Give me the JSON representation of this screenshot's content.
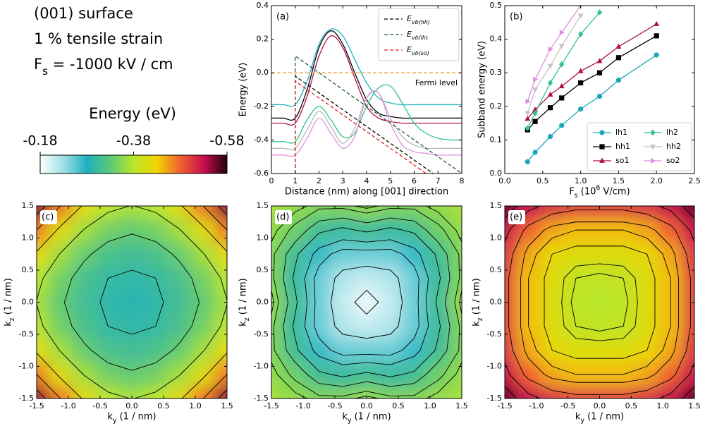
{
  "header": [
    "(001) surface",
    "1 % tensile strain",
    "F_{s} = -1000 kV / cm"
  ],
  "colormap": {
    "label": "Energy (eV)",
    "clim": [
      -0.18,
      -0.58
    ],
    "ticks": [
      -0.18,
      -0.38,
      -0.58
    ],
    "colors": [
      "#ffffff",
      "#9ee0e6",
      "#1fb0c0",
      "#5cc878",
      "#b8e62a",
      "#f4d400",
      "#f06030",
      "#c8104e",
      "#200008"
    ]
  },
  "chart_data": [
    {
      "type": "line",
      "panel_label": "(a)",
      "xlabel": "Distance (nm) along [001] direction",
      "ylabel": "Energy (eV)",
      "xlim": [
        0,
        8
      ],
      "ylim": [
        -0.6,
        0.4
      ],
      "xticks": [
        0,
        1,
        2,
        3,
        4,
        5,
        6,
        7,
        8
      ],
      "yticks": [
        -0.6,
        -0.4,
        -0.2,
        {
          "value": 0,
          "label": "0.0"
        },
        0.2,
        0.4
      ],
      "legend": "upper right",
      "x": [
        0,
        0.5,
        1,
        1.5,
        2,
        2.5,
        3,
        3.5,
        4,
        4.5,
        5,
        5.5,
        6,
        6.5,
        7,
        7.5,
        8
      ],
      "series": [
        {
          "color": "#1fb0c0",
          "values": [
            -0.19,
            -0.19,
            -0.19,
            -0.05,
            0.17,
            0.26,
            0.22,
            0.08,
            -0.06,
            -0.15,
            -0.18,
            -0.19,
            -0.19,
            -0.19,
            -0.19,
            -0.19,
            -0.19
          ]
        },
        {
          "color": "#000000",
          "values": [
            -0.27,
            -0.27,
            -0.27,
            -0.1,
            0.15,
            0.25,
            0.17,
            0.0,
            -0.16,
            -0.24,
            -0.26,
            -0.27,
            -0.27,
            -0.27,
            -0.27,
            -0.27,
            -0.27
          ]
        },
        {
          "color": "#b0104a",
          "values": [
            -0.3,
            -0.3,
            -0.3,
            -0.14,
            0.1,
            0.22,
            0.15,
            -0.03,
            -0.2,
            -0.27,
            -0.29,
            -0.3,
            -0.3,
            -0.3,
            -0.3,
            -0.3,
            -0.3
          ]
        },
        {
          "color": "#2ec48a",
          "values": [
            -0.41,
            -0.41,
            -0.41,
            -0.28,
            -0.2,
            -0.28,
            -0.38,
            -0.36,
            -0.2,
            -0.09,
            -0.08,
            -0.18,
            -0.3,
            -0.36,
            -0.39,
            -0.4,
            -0.4
          ]
        },
        {
          "color": "#b8b8b8",
          "values": [
            -0.45,
            -0.45,
            -0.45,
            -0.34,
            -0.23,
            -0.32,
            -0.42,
            -0.33,
            -0.15,
            -0.12,
            -0.27,
            -0.38,
            -0.43,
            -0.45,
            -0.45,
            -0.45,
            -0.45
          ]
        },
        {
          "color": "#e090e0",
          "values": [
            -0.49,
            -0.49,
            -0.49,
            -0.39,
            -0.27,
            -0.36,
            -0.45,
            -0.38,
            -0.15,
            -0.12,
            -0.3,
            -0.43,
            -0.47,
            -0.48,
            -0.49,
            -0.49,
            -0.49
          ]
        },
        {
          "color": "#f0a030",
          "dashed": true,
          "annotation": "Fermi level",
          "x": [
            0,
            8
          ],
          "values": [
            0,
            0
          ]
        },
        {
          "name": "E_{vb(hh)}",
          "color": "#000000",
          "dashed": true,
          "x": [
            1,
            1,
            6.8
          ],
          "values": [
            -0.6,
            -0.02,
            -0.6
          ]
        },
        {
          "name": "E_{vb(lh)}",
          "color": "#1a5e3a",
          "dashed": true,
          "x": [
            1,
            1,
            8
          ],
          "values": [
            -0.6,
            0.1,
            -0.6
          ]
        },
        {
          "name": "E_{vb(so)}",
          "color": "#e02020",
          "dashed": true,
          "x": [
            1,
            1,
            6.5
          ],
          "values": [
            -0.6,
            -0.05,
            -0.6
          ]
        }
      ]
    },
    {
      "type": "line",
      "panel_label": "(b)",
      "xlabel": "F_{s} (10^{6} V/cm)",
      "ylabel": "Subband energy (eV)",
      "xlim": [
        0,
        2.5
      ],
      "ylim": [
        0,
        0.5
      ],
      "xticks": [
        {
          "value": 0,
          "label": "0.0"
        },
        0.5,
        {
          "value": 1,
          "label": "1.0"
        },
        1.5,
        {
          "value": 2,
          "label": "2.0"
        },
        2.5
      ],
      "yticks": [
        {
          "value": 0,
          "label": "0.0"
        },
        0.1,
        0.2,
        0.3,
        0.4,
        0.5
      ],
      "legend": "lower right",
      "legend_columns": 2,
      "x": [
        0.3,
        0.4,
        0.6,
        0.75,
        1.0,
        1.25,
        1.5,
        2.0
      ],
      "series": [
        {
          "name": "lh1",
          "color": "#1aa8b8",
          "marker": "circle",
          "values": [
            0.035,
            0.063,
            0.11,
            0.143,
            0.192,
            0.23,
            0.278,
            0.353
          ]
        },
        {
          "name": "hh1",
          "color": "#000000",
          "marker": "square",
          "values": [
            0.13,
            0.155,
            0.196,
            0.225,
            0.27,
            0.3,
            0.345,
            0.41
          ]
        },
        {
          "name": "so1",
          "color": "#b0104a",
          "marker": "triangle-up",
          "values": [
            0.163,
            0.19,
            0.235,
            0.26,
            0.305,
            0.335,
            0.378,
            0.445
          ]
        },
        {
          "name": "lh2",
          "color": "#2ec48a",
          "marker": "diamond",
          "values": [
            0.135,
            0.18,
            0.27,
            0.325,
            0.415,
            0.48,
            null,
            null
          ]
        },
        {
          "name": "hh2",
          "color": "#c4c4c4",
          "marker": "triangle-down",
          "values": [
            0.18,
            0.25,
            0.32,
            0.38,
            0.47,
            null,
            null,
            null
          ]
        },
        {
          "name": "so2",
          "color": "#e08ee0",
          "marker": "triangle-right",
          "values": [
            0.215,
            0.28,
            0.37,
            0.42,
            0.5,
            null,
            null,
            null
          ]
        }
      ]
    },
    {
      "type": "heatmap",
      "panel_label": "(c)",
      "xlabel": "k_{y} (1 / nm)",
      "ylabel": "k_{z} (1 / nm)",
      "xlim": [
        -1.5,
        1.5
      ],
      "ylim": [
        -1.5,
        1.5
      ],
      "xticks": [
        -1.5,
        {
          "value": -1,
          "label": "-1.0"
        },
        -0.5,
        {
          "value": 0,
          "label": "0.0"
        },
        0.5,
        {
          "value": 1,
          "label": "1.0"
        },
        1.5
      ],
      "yticks": [
        -1.5,
        {
          "value": -1,
          "label": "-1.0"
        },
        -0.5,
        {
          "value": 0,
          "label": "0.0"
        },
        0.5,
        {
          "value": 1,
          "label": "1.0"
        },
        1.5
      ],
      "x": [
        -1.5,
        -1.125,
        -0.75,
        -0.375,
        0,
        0.375,
        0.75,
        1.125,
        1.5
      ],
      "y": [
        -1.5,
        -1.125,
        -0.75,
        -0.375,
        0,
        0.375,
        0.75,
        1.125,
        1.5
      ],
      "levels": [
        -0.3,
        -0.33,
        -0.37,
        -0.42,
        -0.47,
        -0.52
      ],
      "z": [
        [
          -0.549,
          -0.47,
          -0.414,
          -0.38,
          -0.369,
          -0.38,
          -0.414,
          -0.47,
          -0.549
        ],
        [
          -0.47,
          -0.411,
          -0.368,
          -0.343,
          -0.334,
          -0.343,
          -0.368,
          -0.411,
          -0.47
        ],
        [
          -0.414,
          -0.368,
          -0.336,
          -0.316,
          -0.31,
          -0.316,
          -0.336,
          -0.368,
          -0.414
        ],
        [
          -0.38,
          -0.343,
          -0.316,
          -0.3,
          -0.295,
          -0.3,
          -0.316,
          -0.343,
          -0.38
        ],
        [
          -0.369,
          -0.334,
          -0.31,
          -0.295,
          -0.29,
          -0.295,
          -0.31,
          -0.334,
          -0.369
        ],
        [
          -0.38,
          -0.343,
          -0.316,
          -0.3,
          -0.295,
          -0.3,
          -0.316,
          -0.343,
          -0.38
        ],
        [
          -0.414,
          -0.368,
          -0.336,
          -0.316,
          -0.31,
          -0.316,
          -0.336,
          -0.368,
          -0.414
        ],
        [
          -0.47,
          -0.411,
          -0.368,
          -0.343,
          -0.334,
          -0.343,
          -0.368,
          -0.411,
          -0.47
        ],
        [
          -0.549,
          -0.47,
          -0.414,
          -0.38,
          -0.369,
          -0.38,
          -0.414,
          -0.47,
          -0.549
        ]
      ]
    },
    {
      "type": "heatmap",
      "panel_label": "(d)",
      "xlabel": "k_{y} (1 / nm)",
      "ylabel": "k_{z} (1 / nm)",
      "xlim": [
        -1.5,
        1.5
      ],
      "ylim": [
        -1.5,
        1.5
      ],
      "xticks": [
        -1.5,
        {
          "value": -1,
          "label": "-1.0"
        },
        -0.5,
        {
          "value": 0,
          "label": "0.0"
        },
        0.5,
        {
          "value": 1,
          "label": "1.0"
        },
        1.5
      ],
      "yticks": [
        -1.5,
        {
          "value": -1,
          "label": "-1.0"
        },
        -0.5,
        {
          "value": 0,
          "label": "0.0"
        },
        0.5,
        {
          "value": 1,
          "label": "1.0"
        },
        1.5
      ],
      "x": [
        -1.5,
        -1.125,
        -0.75,
        -0.375,
        0,
        0.375,
        0.75,
        1.125,
        1.5
      ],
      "y": [
        -1.5,
        -1.125,
        -0.75,
        -0.375,
        0,
        0.375,
        0.75,
        1.125,
        1.5
      ],
      "levels": [
        -0.2,
        -0.23,
        -0.26,
        -0.28,
        -0.305,
        -0.325,
        -0.345,
        -0.355
      ],
      "z": [
        [
          -0.37,
          -0.36,
          -0.35,
          -0.35,
          -0.36,
          -0.35,
          -0.35,
          -0.36,
          -0.37
        ],
        [
          -0.36,
          -0.34,
          -0.31,
          -0.3,
          -0.31,
          -0.3,
          -0.31,
          -0.34,
          -0.36
        ],
        [
          -0.35,
          -0.31,
          -0.27,
          -0.25,
          -0.25,
          -0.25,
          -0.27,
          -0.31,
          -0.35
        ],
        [
          -0.35,
          -0.3,
          -0.25,
          -0.22,
          -0.21,
          -0.22,
          -0.25,
          -0.3,
          -0.35
        ],
        [
          -0.36,
          -0.31,
          -0.25,
          -0.21,
          -0.19,
          -0.21,
          -0.25,
          -0.31,
          -0.36
        ],
        [
          -0.35,
          -0.3,
          -0.25,
          -0.22,
          -0.21,
          -0.22,
          -0.25,
          -0.3,
          -0.35
        ],
        [
          -0.35,
          -0.31,
          -0.27,
          -0.25,
          -0.25,
          -0.25,
          -0.27,
          -0.31,
          -0.35
        ],
        [
          -0.36,
          -0.34,
          -0.31,
          -0.3,
          -0.31,
          -0.3,
          -0.31,
          -0.34,
          -0.36
        ],
        [
          -0.37,
          -0.36,
          -0.35,
          -0.35,
          -0.36,
          -0.35,
          -0.35,
          -0.36,
          -0.37
        ]
      ]
    },
    {
      "type": "heatmap",
      "panel_label": "(e)",
      "xlabel": "k_{y} (1 / nm)",
      "ylabel": "k_{z} (1 / nm)",
      "xlim": [
        -1.5,
        1.5
      ],
      "ylim": [
        -1.5,
        1.5
      ],
      "xticks": [
        -1.5,
        {
          "value": -1,
          "label": "-1.0"
        },
        -0.5,
        {
          "value": 0,
          "label": "0.0"
        },
        0.5,
        {
          "value": 1,
          "label": "1.0"
        },
        1.5
      ],
      "yticks": [
        -1.5,
        {
          "value": -1,
          "label": "-1.0"
        },
        -0.5,
        {
          "value": 0,
          "label": "0.0"
        },
        0.5,
        {
          "value": 1,
          "label": "1.0"
        },
        1.5
      ],
      "x": [
        -1.5,
        -1.125,
        -0.75,
        -0.375,
        0,
        0.375,
        0.75,
        1.125,
        1.5
      ],
      "y": [
        -1.5,
        -1.125,
        -0.75,
        -0.375,
        0,
        0.375,
        0.75,
        1.125,
        1.5
      ],
      "levels": [
        -0.39,
        -0.4,
        -0.42,
        -0.44,
        -0.46,
        -0.49,
        -0.52,
        -0.545
      ],
      "z": [
        [
          -0.56,
          -0.53,
          -0.51,
          -0.5,
          -0.5,
          -0.5,
          -0.51,
          -0.53,
          -0.56
        ],
        [
          -0.53,
          -0.48,
          -0.45,
          -0.44,
          -0.44,
          -0.44,
          -0.45,
          -0.48,
          -0.53
        ],
        [
          -0.51,
          -0.45,
          -0.42,
          -0.41,
          -0.41,
          -0.41,
          -0.42,
          -0.45,
          -0.51
        ],
        [
          -0.5,
          -0.44,
          -0.41,
          -0.39,
          -0.385,
          -0.39,
          -0.41,
          -0.44,
          -0.5
        ],
        [
          -0.5,
          -0.44,
          -0.41,
          -0.385,
          -0.38,
          -0.385,
          -0.41,
          -0.44,
          -0.5
        ],
        [
          -0.5,
          -0.44,
          -0.41,
          -0.39,
          -0.385,
          -0.39,
          -0.41,
          -0.44,
          -0.5
        ],
        [
          -0.51,
          -0.45,
          -0.42,
          -0.41,
          -0.41,
          -0.41,
          -0.42,
          -0.45,
          -0.51
        ],
        [
          -0.53,
          -0.48,
          -0.45,
          -0.44,
          -0.44,
          -0.44,
          -0.45,
          -0.48,
          -0.53
        ],
        [
          -0.56,
          -0.53,
          -0.51,
          -0.5,
          -0.5,
          -0.5,
          -0.51,
          -0.53,
          -0.56
        ]
      ]
    }
  ]
}
